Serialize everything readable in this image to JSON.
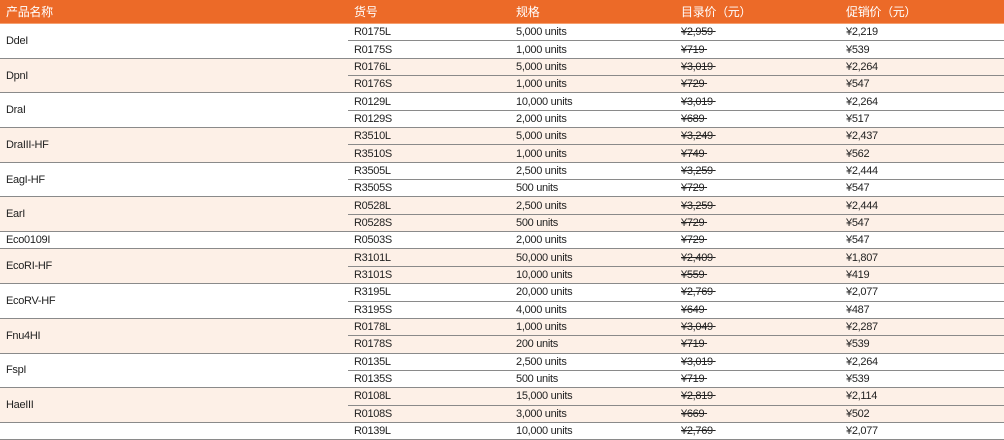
{
  "colors": {
    "header": "#ec6a28",
    "alt_row": "#fdf0e7",
    "divider": "#8a8a8a"
  },
  "headers": [
    "产品名称",
    "货号",
    "规格",
    "目录价（元）",
    "促销价（元）"
  ],
  "products": [
    {
      "name": "DdeI",
      "items": [
        [
          "R0175L",
          "5,000 units",
          "¥2,959",
          "¥2,219"
        ],
        [
          "R0175S",
          "1,000 units",
          "¥719",
          "¥539"
        ]
      ]
    },
    {
      "name": "DpnI",
      "items": [
        [
          "R0176L",
          "5,000 units",
          "¥3,019",
          "¥2,264"
        ],
        [
          "R0176S",
          "1,000 units",
          "¥729",
          "¥547"
        ]
      ]
    },
    {
      "name": "DraI",
      "items": [
        [
          "R0129L",
          "10,000 units",
          "¥3,019",
          "¥2,264"
        ],
        [
          "R0129S",
          "2,000 units",
          "¥689",
          "¥517"
        ]
      ]
    },
    {
      "name": "DraIII-HF",
      "items": [
        [
          "R3510L",
          "5,000 units",
          "¥3,249",
          "¥2,437"
        ],
        [
          "R3510S",
          "1,000 units",
          "¥749",
          "¥562"
        ]
      ]
    },
    {
      "name": "EagI-HF",
      "items": [
        [
          "R3505L",
          "2,500 units",
          "¥3,259",
          "¥2,444"
        ],
        [
          "R3505S",
          "500 units",
          "¥729",
          "¥547"
        ]
      ]
    },
    {
      "name": "EarI",
      "items": [
        [
          "R0528L",
          "2,500 units",
          "¥3,259",
          "¥2,444"
        ],
        [
          "R0528S",
          "500 units",
          "¥729",
          "¥547"
        ]
      ]
    },
    {
      "name": "Eco0109I",
      "items": [
        [
          "R0503S",
          "2,000 units",
          "¥729",
          "¥547"
        ]
      ]
    },
    {
      "name": "EcoRI-HF",
      "items": [
        [
          "R3101L",
          "50,000 units",
          "¥2,409",
          "¥1,807"
        ],
        [
          "R3101S",
          "10,000 units",
          "¥559",
          "¥419"
        ]
      ]
    },
    {
      "name": "EcoRV-HF",
      "items": [
        [
          "R3195L",
          "20,000 units",
          "¥2,769",
          "¥2,077"
        ],
        [
          "R3195S",
          "4,000 units",
          "¥649",
          "¥487"
        ]
      ]
    },
    {
      "name": "Fnu4HI",
      "items": [
        [
          "R0178L",
          "1,000 units",
          "¥3,049",
          "¥2,287"
        ],
        [
          "R0178S",
          "200 units",
          "¥719",
          "¥539"
        ]
      ]
    },
    {
      "name": "FspI",
      "items": [
        [
          "R0135L",
          "2,500 units",
          "¥3,019",
          "¥2,264"
        ],
        [
          "R0135S",
          "500 units",
          "¥719",
          "¥539"
        ]
      ]
    },
    {
      "name": "HaeIII",
      "items": [
        [
          "R0108L",
          "15,000 units",
          "¥2,819",
          "¥2,114"
        ],
        [
          "R0108S",
          "3,000 units",
          "¥669",
          "¥502"
        ]
      ]
    },
    {
      "name": "",
      "items": [
        [
          "R0139L",
          "10,000 units",
          "¥2,769",
          "¥2,077"
        ]
      ]
    }
  ]
}
